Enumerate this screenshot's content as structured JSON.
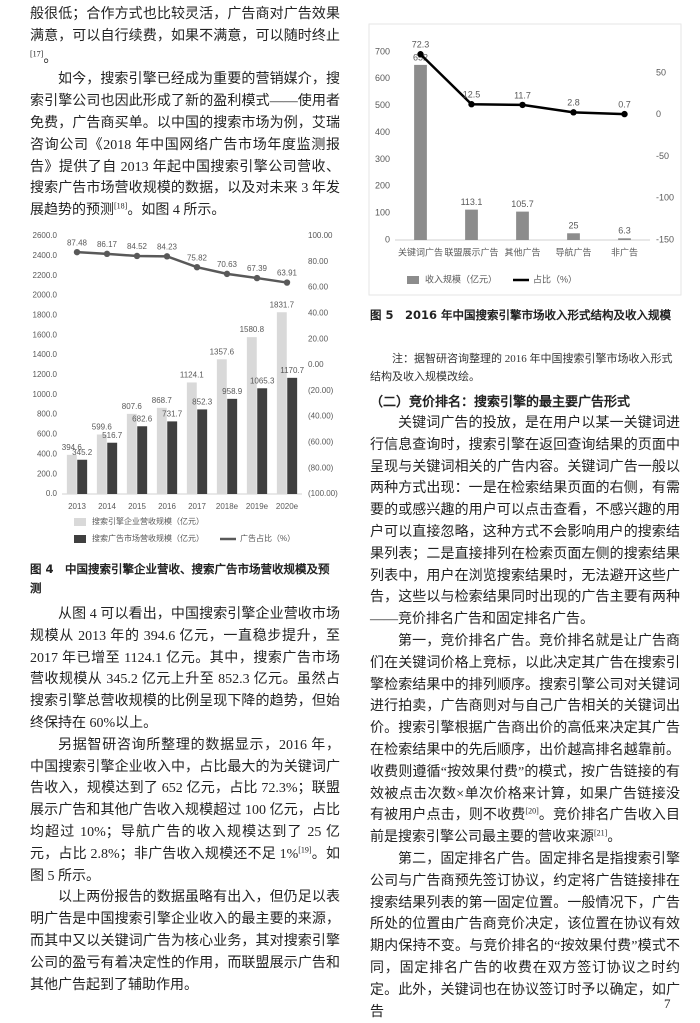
{
  "document": {
    "left_top": [
      [
        "般很低；合作方式也比较灵活，广告商对广告效果满意，可以自行续费，如果不满意，可以随时终止",
        "[17]",
        "。"
      ],
      [
        "如今，搜索引擎已经成为重要的营销媒介，搜索引擎公司也因此形成了新的盈利模式——使用者免费，广告商买单。以中国的搜索市场为例，艾瑞咨询公司《2018 年中国网络广告市场年度监测报告》提供了自 2013 年起中国搜索引擎公司营收、搜索广告市场营收规模的数据，以及对未来 3 年发展趋势的预测",
        "[18]",
        "。如图 4 所示。"
      ]
    ],
    "figure4_caption": "图 4　中国搜索引擎企业营收、搜索广告市场营收规模及预测",
    "left_bottom": [
      [
        "从图 4 可以看出，中国搜索引擎企业营收市场规模从 2013 年的 394.6 亿元，一直稳步提升，至 2017 年已增至 1124.1 亿元。其中，搜索广告市场营收规模从 345.2 亿元上升至 852.3 亿元。虽然占搜索引擎总营收规模的比例呈现下降的趋势，但始终保持在 60%以上。"
      ],
      [
        "另据智研咨询所整理的数据显示，2016 年，中国搜索引擎企业收入中，占比最大的为关键词广告收入，规模达到了 652 亿元，占比 72.3%；联盟展示广告和其他广告收入规模超过 100 亿元，占比均超过 10%；导航广告的收入规模达到了 25 亿元，占比 2.8%；非广告收入规模还不足 1%",
        "[19]",
        "。如图 5 所示。"
      ],
      [
        "以上两份报告的数据虽略有出入，但仍足以表明广告是中国搜索引擎企业收入的最主要的来源，而其中又以关键词广告为核心业务，其对搜索引擎公司的盈亏有着决定性的作用，而联盟展示广告和其他广告起到了辅助作用。"
      ]
    ],
    "figure5_caption": "图 5　2016 年中国搜索引擎市场收入形式结构及收入规模",
    "figure5_note": "注：据智研咨询整理的 2016 年中国搜索引擎市场收入形式结构及收入规模改绘。",
    "heading": "（二）竞价排名：搜索引擎的最主要广告形式",
    "right": [
      [
        "关键词广告的投放，是在用户以某一关键词进行信息查询时，搜索引擎在返回查询结果的页面中呈现与关键词相关的广告内容。关键词广告一般以两种方式出现：一是在检索结果页面的右侧，有需要的或感兴趣的用户可以点击查看，不感兴趣的用户可以直接忽略，这种方式不会影响用户的搜索结果列表；二是直接排列在检索页面左侧的搜索结果列表中，用户在浏览搜索结果时，无法避开这些广告，这些以与检索结果同时出现的广告主要有两种——竞价排名广告和固定排名广告。"
      ],
      [
        "第一，竞价排名广告。竞价排名就是让广告商们在关键词价格上竞标，以此决定其广告在搜索引擎检索结果中的排列顺序。搜索引擎公司对关键词进行拍卖，广告商则对与自己广告相关的关键词出价。搜索引擎根据广告商出价的高低来决定其广告在检索结果中的先后顺序，出价越高排名越靠前。收费则遵循“按效果付费”的模式，按广告链接的有效被点击次数×单次价格来计算，如果广告链接没有被用户点击，则不收费",
        "[20]",
        "。竞价排名广告收入目前是搜索引擎公司最主要的营收来源",
        "[21]",
        "。"
      ],
      [
        "第二，固定排名广告。固定排名是指搜索引擎公司与广告商预先签订协议，约定将广告链接排在搜索结果列表的第一固定位置。一般情况下，广告所处的位置由广告商竞价决定，该位置在协议有效期内保持不变。与竞价排名的“按效果付费”模式不同，固定排名广告的收费在双方签订协议之时约定。此外，关键词也在协议签订时予以确定，如广告"
      ]
    ],
    "page_number": "7"
  },
  "chart_data": [
    {
      "type": "bar",
      "categories": [
        "2013",
        "2014",
        "2015",
        "2016",
        "2017",
        "2018e",
        "2019e",
        "2020e"
      ],
      "series": [
        {
          "name": "搜索引擎企业营收规模（亿元）",
          "color": "#d9d9d9",
          "values": [
            394.6,
            599.6,
            807.6,
            868.7,
            1124.1,
            1357.6,
            1580.8,
            1831.7
          ]
        },
        {
          "name": "搜索广告市场营收规模（亿元）",
          "color": "#3f3f3f",
          "values": [
            345.2,
            516.7,
            682.6,
            731.7,
            852.3,
            958.9,
            1065.3,
            1170.7
          ]
        },
        {
          "name": "广告占比（%）",
          "type": "line",
          "axis": "y2",
          "color": "#595959",
          "values": [
            87.48,
            86.17,
            84.52,
            84.23,
            75.82,
            70.63,
            67.39,
            63.91
          ]
        }
      ],
      "ylim": [
        0,
        2600
      ],
      "yticks": [
        {
          "value": 0,
          "label": "0.0"
        },
        {
          "value": 200,
          "label": "200.0"
        },
        {
          "value": 400,
          "label": "400.0"
        },
        {
          "value": 600,
          "label": "600.0"
        },
        {
          "value": 800,
          "label": "800.0"
        },
        {
          "value": 1000,
          "label": "1000.0"
        },
        {
          "value": 1200,
          "label": "1200.0"
        },
        {
          "value": 1400,
          "label": "1400.0"
        },
        {
          "value": 1600,
          "label": "1600.0"
        },
        {
          "value": 1800,
          "label": "1800.0"
        },
        {
          "value": 2000,
          "label": "2000.0"
        },
        {
          "value": 2200,
          "label": "2200.0"
        },
        {
          "value": 2400,
          "label": "2400.0"
        },
        {
          "value": 2600,
          "label": "2600.0"
        }
      ],
      "y2lim": [
        -100,
        100
      ],
      "y2ticks": [
        {
          "value": 100,
          "label": "100.00"
        },
        {
          "value": 80,
          "label": "80.00"
        },
        {
          "value": 60,
          "label": "60.00"
        },
        {
          "value": 40,
          "label": "40.00"
        },
        {
          "value": 20,
          "label": "20.00"
        },
        {
          "value": 0,
          "label": "0.00"
        },
        {
          "value": -20,
          "label": "(20.00)"
        },
        {
          "value": -40,
          "label": "(40.00)"
        },
        {
          "value": -60,
          "label": "(60.00)"
        },
        {
          "value": -80,
          "label": "(80.00)"
        },
        {
          "value": -100,
          "label": "(100.00)"
        }
      ],
      "y2_negative_color": "#c00000",
      "legend": "bottom"
    },
    {
      "type": "bar",
      "categories": [
        "关键词广告",
        "联盟展示广告",
        "其他广告",
        "导航广告",
        "非广告"
      ],
      "series": [
        {
          "name": "收入规模（亿元）",
          "color": "#8c8c8c",
          "values": [
            652,
            113.1,
            105.7,
            25,
            6.3
          ]
        },
        {
          "name": "占比（%）",
          "type": "line",
          "axis": "y2",
          "color": "#000000",
          "values": [
            72.3,
            12.5,
            11.7,
            2.8,
            0.7
          ]
        }
      ],
      "ylim": [
        0,
        700
      ],
      "yticks": [
        0,
        100,
        200,
        300,
        400,
        500,
        600,
        700
      ],
      "y2lim": [
        -150,
        75
      ],
      "y2ticks": [
        50,
        0,
        -50,
        -100,
        -150
      ],
      "legend": "bottom"
    }
  ]
}
